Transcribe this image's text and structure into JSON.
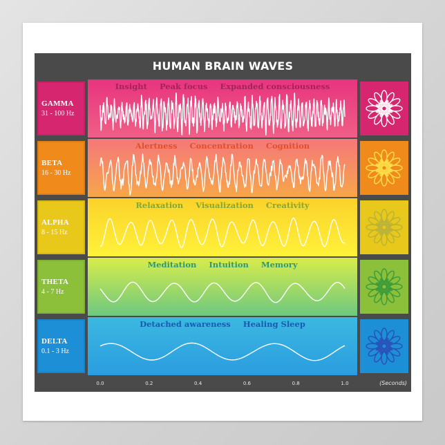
{
  "title": "HUMAN BRAIN WAVES",
  "bands": [
    {
      "name": "GAMMA",
      "range": "31 - 100 Hz",
      "terms": [
        "Insight",
        "Peak focus",
        "Expanded consciousness"
      ],
      "label_color": "#d6266f",
      "term_color": "#a0245c",
      "gradient": [
        "#e8347f",
        "#ef5f86"
      ],
      "icon_color": "#ffffff",
      "wave": {
        "cycles": 64,
        "amplitude": 0.55,
        "irregular": 0.9
      }
    },
    {
      "name": "BETA",
      "range": "16 - 30 Hz",
      "terms": [
        "Alertness",
        "Concentration",
        "Cognition"
      ],
      "label_color": "#f08a1a",
      "term_color": "#e0502a",
      "gradient": [
        "#f5787a",
        "#f6a64a"
      ],
      "icon_color": "#ffe14a",
      "wave": {
        "cycles": 30,
        "amplitude": 0.6,
        "irregular": 0.7
      }
    },
    {
      "name": "ALPHA",
      "range": "8 - 15 Hz",
      "terms": [
        "Relaxation",
        "Visualization",
        "Creativity"
      ],
      "label_color": "#e8c81a",
      "term_color": "#7ea83a",
      "gradient": [
        "#fbd22a",
        "#fff23a"
      ],
      "icon_color": "#b8b23a",
      "wave": {
        "cycles": 12,
        "amplitude": 0.55,
        "irregular": 0.35
      }
    },
    {
      "name": "THETA",
      "range": "4 - 7 Hz",
      "terms": [
        "Meditation",
        "Intuition",
        "Memory"
      ],
      "label_color": "#8cbf3a",
      "term_color": "#2a9a7a",
      "gradient": [
        "#d8ec4a",
        "#6ec880"
      ],
      "icon_color": "#3a9a3a",
      "wave": {
        "cycles": 6,
        "amplitude": 0.4,
        "irregular": 0.2
      }
    },
    {
      "name": "DELTA",
      "range": "0.1 - 3 Hz",
      "terms": [
        "Detached awareness",
        "Healing Sleep"
      ],
      "label_color": "#1c8fd6",
      "term_color": "#1a5ab0",
      "gradient": [
        "#3cb8e0",
        "#2a9de0"
      ],
      "icon_color": "#2a4fb8",
      "wave": {
        "cycles": 3,
        "amplitude": 0.35,
        "irregular": 0.1
      }
    }
  ],
  "axis": {
    "ticks": [
      "0.0",
      "0.2",
      "0.4",
      "0.6",
      "0.8",
      "1.0"
    ],
    "unit": "(Seconds)"
  },
  "colors": {
    "frame": "#4a4a4a",
    "background": "#ffffff"
  }
}
